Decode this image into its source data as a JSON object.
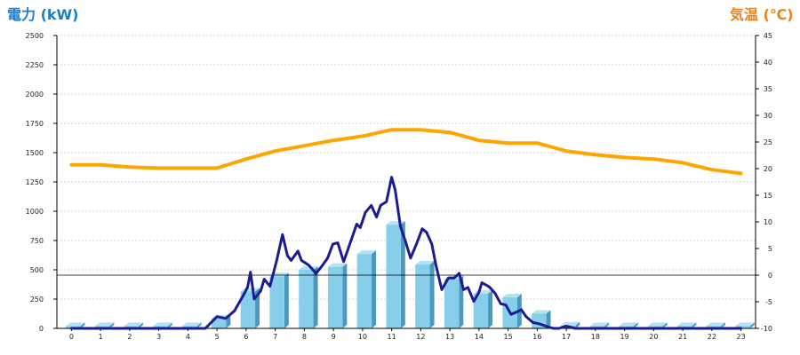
{
  "chart_data": {
    "type": "bar",
    "title": "",
    "y_left_label": "電力 (kW)",
    "y_right_label": "気温 (℃)",
    "categories": [
      "0",
      "1",
      "2",
      "3",
      "4",
      "5",
      "6",
      "7",
      "8",
      "9",
      "10",
      "11",
      "12",
      "13",
      "14",
      "15",
      "16",
      "17",
      "18",
      "19",
      "20",
      "21",
      "22",
      "23"
    ],
    "y_left": {
      "ticks": [
        "0",
        "250",
        "500",
        "750",
        "1000",
        "1250",
        "1500",
        "1750",
        "2000",
        "2250",
        "2500"
      ],
      "lim": [
        0,
        2500
      ]
    },
    "y_right": {
      "ticks": [
        "-10",
        "-5",
        "0",
        "5",
        "10",
        "15",
        "20",
        "25",
        "30",
        "35",
        "40",
        "45"
      ],
      "lim": [
        -10,
        45
      ]
    },
    "grid": true,
    "colors": {
      "left_label": "#1a7fc9",
      "right_label": "#e8841e",
      "bar_face": "#87ceea",
      "bar_side": "#4a98bd",
      "bar_top": "#b4e2f5",
      "power_line": "#1c1c8e",
      "temp_line": "#ffa500",
      "grid": "#c8c8c8",
      "zero_line": "#000000"
    },
    "series": [
      {
        "kind": "bar",
        "axis": "left",
        "values": [
          20,
          20,
          20,
          20,
          20,
          85,
          315,
          445,
          500,
          525,
          635,
          885,
          545,
          420,
          295,
          265,
          125,
          25,
          20,
          20,
          20,
          20,
          20,
          20
        ]
      },
      {
        "kind": "line",
        "axis": "left",
        "values": [
          [
            0.0,
            0
          ],
          [
            4.6,
            0
          ],
          [
            5.0,
            100
          ],
          [
            5.3,
            85
          ],
          [
            5.6,
            150
          ],
          [
            5.9,
            280
          ],
          [
            6.05,
            350
          ],
          [
            6.15,
            480
          ],
          [
            6.28,
            250
          ],
          [
            6.5,
            320
          ],
          [
            6.62,
            420
          ],
          [
            6.82,
            360
          ],
          [
            7.05,
            580
          ],
          [
            7.25,
            800
          ],
          [
            7.42,
            620
          ],
          [
            7.55,
            580
          ],
          [
            7.78,
            660
          ],
          [
            7.9,
            580
          ],
          [
            8.15,
            540
          ],
          [
            8.4,
            470
          ],
          [
            8.6,
            530
          ],
          [
            8.8,
            600
          ],
          [
            8.98,
            720
          ],
          [
            9.15,
            730
          ],
          [
            9.35,
            570
          ],
          [
            9.52,
            690
          ],
          [
            9.8,
            890
          ],
          [
            9.92,
            860
          ],
          [
            10.1,
            990
          ],
          [
            10.3,
            1050
          ],
          [
            10.48,
            950
          ],
          [
            10.62,
            1050
          ],
          [
            10.82,
            1080
          ],
          [
            11.0,
            1290
          ],
          [
            11.12,
            1180
          ],
          [
            11.3,
            870
          ],
          [
            11.48,
            740
          ],
          [
            11.65,
            600
          ],
          [
            11.85,
            720
          ],
          [
            12.05,
            850
          ],
          [
            12.2,
            820
          ],
          [
            12.38,
            720
          ],
          [
            12.52,
            540
          ],
          [
            12.72,
            330
          ],
          [
            12.95,
            430
          ],
          [
            13.15,
            430
          ],
          [
            13.32,
            470
          ],
          [
            13.47,
            330
          ],
          [
            13.62,
            350
          ],
          [
            13.82,
            230
          ],
          [
            14.0,
            310
          ],
          [
            14.1,
            390
          ],
          [
            14.35,
            355
          ],
          [
            14.55,
            300
          ],
          [
            14.75,
            210
          ],
          [
            14.92,
            200
          ],
          [
            15.1,
            120
          ],
          [
            15.3,
            140
          ],
          [
            15.45,
            160
          ],
          [
            15.62,
            100
          ],
          [
            15.85,
            50
          ],
          [
            16.05,
            40
          ],
          [
            16.3,
            20
          ],
          [
            16.55,
            0
          ],
          [
            16.75,
            0
          ],
          [
            17.0,
            20
          ],
          [
            17.3,
            0
          ],
          [
            23.0,
            0
          ]
        ]
      },
      {
        "kind": "line",
        "axis": "right",
        "values": [
          20.7,
          20.7,
          20.3,
          20.1,
          20.1,
          20.1,
          21.8,
          23.3,
          24.3,
          25.3,
          26.1,
          27.3,
          27.3,
          26.8,
          25.3,
          24.8,
          24.8,
          23.3,
          22.6,
          22.1,
          21.8,
          21.1,
          19.8,
          19.1
        ]
      }
    ]
  }
}
